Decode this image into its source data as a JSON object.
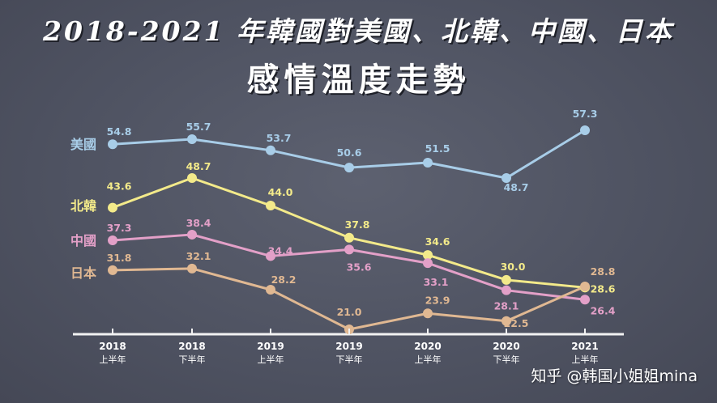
{
  "title_line1": "2018-2021 年韓國對美國、北韓、中國、日本",
  "title_line2": "感情溫度走勢",
  "watermark": "知乎 @韩国小姐姐mina",
  "chart_data": {
    "type": "line",
    "title": "2018-2021 年韓國對美國、北韓、中國、日本 感情溫度走勢",
    "x": [
      {
        "year": "2018",
        "half": "上半年"
      },
      {
        "year": "2018",
        "half": "下半年"
      },
      {
        "year": "2019",
        "half": "上半年"
      },
      {
        "year": "2019",
        "half": "下半年"
      },
      {
        "year": "2020",
        "half": "上半年"
      },
      {
        "year": "2020",
        "half": "下半年"
      },
      {
        "year": "2021",
        "half": "上半年"
      }
    ],
    "series": [
      {
        "name": "美國",
        "color": "#a8cde8",
        "values": [
          54.8,
          55.7,
          53.7,
          50.6,
          51.5,
          48.7,
          57.3
        ]
      },
      {
        "name": "北韓",
        "color": "#f3ea8a",
        "values": [
          43.6,
          48.7,
          44.0,
          37.8,
          34.6,
          30.0,
          28.6
        ]
      },
      {
        "name": "中國",
        "color": "#e3a0c8",
        "values": [
          37.3,
          38.4,
          34.4,
          35.6,
          33.1,
          28.1,
          26.4
        ]
      },
      {
        "name": "日本",
        "color": "#e0b892",
        "values": [
          31.8,
          32.1,
          28.2,
          21.0,
          23.9,
          22.5,
          28.8
        ]
      }
    ],
    "legend": "left, inline at start of each series",
    "grid": false
  }
}
